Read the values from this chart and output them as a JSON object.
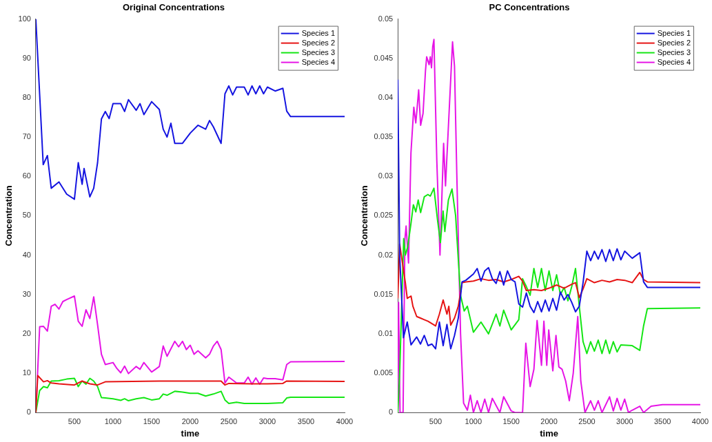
{
  "chart_data": [
    {
      "type": "line",
      "title": "Original Concentrations",
      "xlabel": "time",
      "ylabel": "Concentration",
      "legend": "top right",
      "marker": "none",
      "xlim": [
        0,
        4000
      ],
      "ylim": [
        0,
        100
      ],
      "xticks": [
        500,
        1000,
        1500,
        2000,
        2500,
        3000,
        3500,
        4000
      ],
      "yticks": [
        0,
        10,
        20,
        30,
        40,
        50,
        60,
        70,
        80,
        90,
        100
      ],
      "series": [
        {
          "name": "Species 1",
          "color": "#1414e0",
          "x": [
            0,
            96,
            150,
            200,
            300,
            400,
            500,
            550,
            600,
            625,
            700,
            750,
            800,
            850,
            900,
            950,
            1000,
            1100,
            1150,
            1200,
            1300,
            1350,
            1400,
            1500,
            1600,
            1650,
            1700,
            1750,
            1800,
            1900,
            2000,
            2100,
            2200,
            2250,
            2300,
            2400,
            2450,
            2500,
            2550,
            2600,
            2700,
            2750,
            2800,
            2850,
            2900,
            2950,
            3000,
            3100,
            3200,
            3250,
            3300,
            4000
          ],
          "values": [
            100,
            63,
            65.3,
            57,
            58.6,
            55.5,
            54.2,
            63.5,
            58,
            62,
            54.8,
            57,
            63.5,
            74.6,
            76.5,
            74.7,
            78.5,
            78.5,
            76.5,
            79.5,
            76.8,
            78.5,
            75.7,
            79,
            77,
            72,
            70,
            73.5,
            68.4,
            68.4,
            71,
            73,
            72,
            74.2,
            72.6,
            68.4,
            81,
            83,
            80.7,
            82.7,
            82.7,
            80.7,
            83,
            81,
            83,
            81,
            82.7,
            81.7,
            82.4,
            76.6,
            75.2,
            75.2
          ]
        },
        {
          "name": "Species 2",
          "color": "#e61414",
          "x": [
            0,
            25,
            100,
            150,
            200,
            300,
            500,
            600,
            700,
            800,
            900,
            1600,
            2400,
            2450,
            2500,
            2800,
            3000,
            3200,
            3250,
            4000
          ],
          "values": [
            0,
            9.4,
            7.8,
            8.1,
            7.5,
            7.3,
            7,
            8,
            7.3,
            7,
            7.8,
            8,
            8,
            7,
            7.4,
            7.3,
            7.3,
            7.4,
            8,
            7.9
          ]
        },
        {
          "name": "Species 3",
          "color": "#14e614",
          "x": [
            0,
            50,
            100,
            150,
            200,
            300,
            400,
            500,
            550,
            600,
            650,
            700,
            750,
            800,
            850,
            900,
            1000,
            1100,
            1150,
            1200,
            1300,
            1400,
            1500,
            1600,
            1650,
            1700,
            1800,
            1900,
            2000,
            2100,
            2200,
            2300,
            2400,
            2450,
            2500,
            2600,
            2700,
            2800,
            3000,
            3200,
            3250,
            3300,
            4000
          ],
          "values": [
            0,
            5.6,
            6.6,
            6.3,
            8,
            8.1,
            8.5,
            8.7,
            6.6,
            8,
            7.2,
            8.7,
            8,
            6.6,
            3.8,
            3.7,
            3.5,
            3.1,
            3.5,
            3,
            3.5,
            3.8,
            3.2,
            3.5,
            4.7,
            4.4,
            5.4,
            5.2,
            4.9,
            4.9,
            4.2,
            4.7,
            5.4,
            3.2,
            2.3,
            2.6,
            2.3,
            2.3,
            2.3,
            2.5,
            3.7,
            3.9,
            3.9
          ]
        },
        {
          "name": "Species 4",
          "color": "#e614e6",
          "x": [
            0,
            50,
            100,
            150,
            200,
            250,
            300,
            350,
            400,
            500,
            550,
            600,
            650,
            700,
            750,
            800,
            850,
            900,
            1000,
            1050,
            1100,
            1150,
            1200,
            1300,
            1350,
            1400,
            1500,
            1600,
            1650,
            1700,
            1800,
            1850,
            1900,
            1950,
            2000,
            2050,
            2100,
            2200,
            2250,
            2300,
            2350,
            2400,
            2450,
            2500,
            2600,
            2700,
            2750,
            2800,
            2850,
            2900,
            2950,
            3000,
            3100,
            3200,
            3250,
            3300,
            4000
          ],
          "values": [
            0,
            21.8,
            21.9,
            20.7,
            27,
            27.5,
            26.3,
            28.2,
            28.7,
            29.6,
            23.2,
            21.9,
            26.1,
            23.9,
            29.4,
            22.3,
            14.8,
            12.2,
            12.7,
            11.2,
            10.1,
            11.8,
            9.9,
            11.7,
            11,
            12.7,
            10.3,
            11.7,
            16.9,
            14.3,
            18.1,
            16.7,
            18.1,
            16,
            17.1,
            14.8,
            15.7,
            13.9,
            14.8,
            16.9,
            18.1,
            16,
            7.5,
            9,
            7.5,
            7.5,
            9,
            7.2,
            8.8,
            7.2,
            8.8,
            8.6,
            8.6,
            8.3,
            12.2,
            12.9,
            13
          ]
        }
      ]
    },
    {
      "type": "line",
      "title": "PC Concentrations",
      "xlabel": "time",
      "ylabel": "Concentration",
      "legend": "top right",
      "marker": "none",
      "xlim": [
        0,
        4000
      ],
      "ylim": [
        0,
        0.05
      ],
      "xticks": [
        500,
        1000,
        1500,
        2000,
        2500,
        3000,
        3500,
        4000
      ],
      "yticks": [
        0,
        0.005,
        0.01,
        0.015,
        0.02,
        0.025,
        0.03,
        0.035,
        0.04,
        0.045,
        0.05
      ],
      "series": [
        {
          "name": "Species 1",
          "color": "#1414e0",
          "x": [
            0,
            25,
            75,
            125,
            175,
            250,
            300,
            350,
            400,
            450,
            500,
            550,
            600,
            650,
            700,
            750,
            800,
            850,
            900,
            1000,
            1050,
            1100,
            1150,
            1200,
            1250,
            1300,
            1350,
            1400,
            1450,
            1500,
            1550,
            1600,
            1650,
            1700,
            1750,
            1800,
            1850,
            1900,
            1950,
            2000,
            2050,
            2100,
            2150,
            2200,
            2250,
            2300,
            2350,
            2400,
            2450,
            2500,
            2550,
            2600,
            2650,
            2700,
            2750,
            2800,
            2850,
            2900,
            2950,
            3000,
            3100,
            3200,
            3250,
            3300,
            4000
          ],
          "values": [
            0.0423,
            0.02,
            0.0095,
            0.0115,
            0.0086,
            0.0096,
            0.0087,
            0.0098,
            0.0085,
            0.0087,
            0.0081,
            0.0115,
            0.0085,
            0.0112,
            0.0081,
            0.0098,
            0.012,
            0.0166,
            0.0168,
            0.0176,
            0.0183,
            0.0167,
            0.018,
            0.0184,
            0.017,
            0.0164,
            0.0179,
            0.0162,
            0.018,
            0.0169,
            0.0166,
            0.0138,
            0.0134,
            0.0152,
            0.0135,
            0.0127,
            0.0141,
            0.0128,
            0.0143,
            0.0129,
            0.0145,
            0.013,
            0.0153,
            0.0143,
            0.015,
            0.014,
            0.0128,
            0.0135,
            0.0165,
            0.0205,
            0.0193,
            0.0205,
            0.0195,
            0.0207,
            0.0192,
            0.0207,
            0.0193,
            0.0208,
            0.0194,
            0.0205,
            0.0196,
            0.0203,
            0.0166,
            0.0159,
            0.0159
          ]
        },
        {
          "name": "Species 2",
          "color": "#e61414",
          "x": [
            0,
            25,
            100,
            125,
            175,
            200,
            250,
            300,
            350,
            400,
            500,
            550,
            600,
            650,
            675,
            700,
            750,
            800,
            850,
            900,
            1000,
            1100,
            1200,
            1300,
            1400,
            1500,
            1600,
            1650,
            1700,
            1800,
            1900,
            2000,
            2100,
            2200,
            2300,
            2350,
            2400,
            2450,
            2500,
            2600,
            2700,
            2800,
            2900,
            3000,
            3100,
            3200,
            3250,
            3300,
            4000
          ],
          "values": [
            0.0145,
            0.0214,
            0.0165,
            0.0145,
            0.0148,
            0.0135,
            0.0122,
            0.012,
            0.0118,
            0.0116,
            0.011,
            0.0125,
            0.0143,
            0.0125,
            0.0135,
            0.0111,
            0.012,
            0.0135,
            0.0165,
            0.0166,
            0.0167,
            0.017,
            0.0168,
            0.0169,
            0.0166,
            0.0169,
            0.0173,
            0.0167,
            0.0155,
            0.0156,
            0.0155,
            0.0158,
            0.0162,
            0.0158,
            0.0163,
            0.0165,
            0.0146,
            0.0157,
            0.017,
            0.0165,
            0.0168,
            0.0166,
            0.0169,
            0.0168,
            0.0165,
            0.0178,
            0.0169,
            0.0166,
            0.0165
          ]
        },
        {
          "name": "Species 3",
          "color": "#14e614",
          "x": [
            0,
            25,
            78,
            100,
            130,
            174,
            206,
            238,
            270,
            302,
            350,
            398,
            430,
            478,
            525,
            564,
            599,
            622,
            669,
            717,
            765,
            781,
            830,
            878,
            920,
            1000,
            1100,
            1200,
            1300,
            1350,
            1400,
            1500,
            1600,
            1650,
            1700,
            1750,
            1800,
            1850,
            1900,
            1950,
            2000,
            2050,
            2100,
            2150,
            2200,
            2250,
            2300,
            2350,
            2400,
            2450,
            2500,
            2550,
            2600,
            2650,
            2700,
            2750,
            2800,
            2850,
            2900,
            2950,
            3100,
            3200,
            3250,
            3300,
            4000
          ],
          "values": [
            0,
            0.005,
            0.0221,
            0.02,
            0.021,
            0.024,
            0.0264,
            0.0255,
            0.027,
            0.0254,
            0.0274,
            0.0277,
            0.0275,
            0.0285,
            0.0245,
            0.0216,
            0.0256,
            0.023,
            0.027,
            0.0284,
            0.025,
            0.0224,
            0.0149,
            0.0129,
            0.0135,
            0.0102,
            0.0115,
            0.01,
            0.0125,
            0.011,
            0.013,
            0.0105,
            0.0118,
            0.017,
            0.016,
            0.0149,
            0.0183,
            0.0159,
            0.0183,
            0.0155,
            0.018,
            0.0155,
            0.0175,
            0.015,
            0.0159,
            0.0142,
            0.016,
            0.0183,
            0.0135,
            0.009,
            0.0075,
            0.009,
            0.0078,
            0.0092,
            0.0075,
            0.0092,
            0.0075,
            0.009,
            0.0077,
            0.0086,
            0.0085,
            0.0079,
            0.011,
            0.0132,
            0.0133
          ]
        },
        {
          "name": "Species 4",
          "color": "#e614e6",
          "x": [
            0,
            10,
            30,
            70,
            94,
            110,
            142,
            174,
            212,
            238,
            254,
            276,
            302,
            334,
            366,
            382,
            414,
            430,
            446,
            462,
            478,
            516,
            558,
            606,
            631,
            724,
            750,
            781,
            830,
            870,
            920,
            960,
            1000,
            1050,
            1100,
            1150,
            1200,
            1250,
            1350,
            1400,
            1500,
            1550,
            1600,
            1650,
            1693,
            1750,
            1800,
            1842,
            1900,
            1932,
            1970,
            1996,
            2050,
            2092,
            2130,
            2172,
            2220,
            2268,
            2320,
            2380,
            2420,
            2475,
            2550,
            2600,
            2650,
            2700,
            2800,
            2850,
            2900,
            2950,
            3000,
            3050,
            3100,
            3200,
            3250,
            3350,
            3500,
            4000
          ],
          "values": [
            0,
            0.014,
            0,
            0,
            0.022,
            0.0237,
            0.019,
            0.033,
            0.0388,
            0.0368,
            0.0385,
            0.041,
            0.0365,
            0.038,
            0.0434,
            0.0452,
            0.0442,
            0.0452,
            0.0438,
            0.0465,
            0.0474,
            0.032,
            0.02,
            0.0342,
            0.0288,
            0.0471,
            0.044,
            0.03,
            0.01,
            0.0012,
            0.0003,
            0.0022,
            0,
            0.0015,
            0,
            0.0017,
            0,
            0.0018,
            0,
            0.002,
            0.0002,
            0,
            0,
            0,
            0.0088,
            0.0033,
            0.0055,
            0.0117,
            0.006,
            0.0116,
            0.006,
            0.0105,
            0.0053,
            0.0098,
            0.0058,
            0.0055,
            0.004,
            0.0015,
            0.005,
            0.0122,
            0.004,
            0,
            0.0015,
            0.0003,
            0.0015,
            0,
            0.002,
            0.0002,
            0.0018,
            0.0003,
            0.0017,
            0,
            0.0003,
            0.0008,
            0,
            0.0008,
            0.001,
            0.001
          ]
        }
      ]
    }
  ]
}
